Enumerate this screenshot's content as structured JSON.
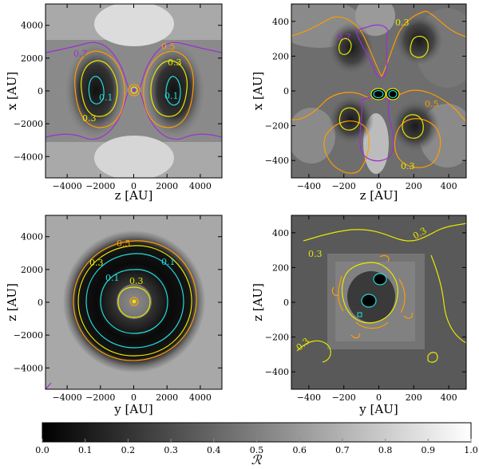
{
  "panels": [
    {
      "id": "top-left",
      "xlabel": "z [AU]",
      "ylabel": "x [AU]",
      "xticks": [
        "−4000",
        "−2000",
        "0",
        "2000",
        "4000"
      ],
      "yticks": [
        "4000",
        "2000",
        "0",
        "−2000",
        "−4000"
      ],
      "contour_labels": [
        "0.7",
        "0.5",
        "0.3",
        "0.1",
        "0.1",
        "0.3"
      ]
    },
    {
      "id": "top-right",
      "xlabel": "z [AU]",
      "ylabel": "x [AU]",
      "xticks": [
        "−400",
        "−200",
        "0",
        "200",
        "400"
      ],
      "yticks": [
        "400",
        "200",
        "0",
        "−200",
        "−400"
      ],
      "contour_labels": [
        "0.7",
        "0.3",
        "0.5",
        "0.3"
      ]
    },
    {
      "id": "bottom-left",
      "xlabel": "y [AU]",
      "ylabel": "z [AU]",
      "xticks": [
        "−4000",
        "−2000",
        "0",
        "2000",
        "4000"
      ],
      "yticks": [
        "4000",
        "2000",
        "0",
        "−2000",
        "−4000"
      ],
      "contour_labels": [
        "0.5",
        "0.3",
        "0.1",
        "0.1",
        "0.3"
      ]
    },
    {
      "id": "bottom-right",
      "xlabel": "y [AU]",
      "ylabel": "z [AU]",
      "xticks": [
        "−400",
        "−200",
        "0",
        "200",
        "400"
      ],
      "yticks": [
        "400",
        "200",
        "0",
        "−200",
        "−400"
      ],
      "contour_labels": [
        "0.3",
        "0.3",
        "0.3"
      ]
    }
  ],
  "colorbar": {
    "label": "ℛ",
    "ticks": [
      "0.0",
      "0.1",
      "0.2",
      "0.3",
      "0.4",
      "0.5",
      "0.6",
      "0.7",
      "0.8",
      "0.9",
      "1.0"
    ]
  },
  "contour_colors": {
    "0.1": "#22dddd",
    "0.3": "#e8e800",
    "0.5": "#ff9c00",
    "0.7": "#9b30d0"
  },
  "chart_data": [
    {
      "type": "heatmap",
      "xlabel": "z [AU]",
      "ylabel": "x [AU]",
      "xlim": [
        -5300,
        5300
      ],
      "ylim": [
        -5300,
        5300
      ],
      "colorscale": "gray",
      "zlim": [
        0,
        1
      ],
      "contour_levels": [
        0.1,
        0.3,
        0.5,
        0.7
      ]
    },
    {
      "type": "heatmap",
      "xlabel": "z [AU]",
      "ylabel": "x [AU]",
      "xlim": [
        -500,
        500
      ],
      "ylim": [
        -500,
        500
      ],
      "colorscale": "gray",
      "zlim": [
        0,
        1
      ],
      "contour_levels": [
        0.1,
        0.3,
        0.5,
        0.7
      ]
    },
    {
      "type": "heatmap",
      "xlabel": "y [AU]",
      "ylabel": "z [AU]",
      "xlim": [
        -5300,
        5300
      ],
      "ylim": [
        -5300,
        5300
      ],
      "colorscale": "gray",
      "zlim": [
        0,
        1
      ],
      "contour_levels": [
        0.1,
        0.3,
        0.5
      ]
    },
    {
      "type": "heatmap",
      "xlabel": "y [AU]",
      "ylabel": "z [AU]",
      "xlim": [
        -500,
        500
      ],
      "ylim": [
        -500,
        500
      ],
      "colorscale": "gray",
      "zlim": [
        0,
        1
      ],
      "contour_levels": [
        0.1,
        0.3,
        0.5
      ]
    }
  ]
}
